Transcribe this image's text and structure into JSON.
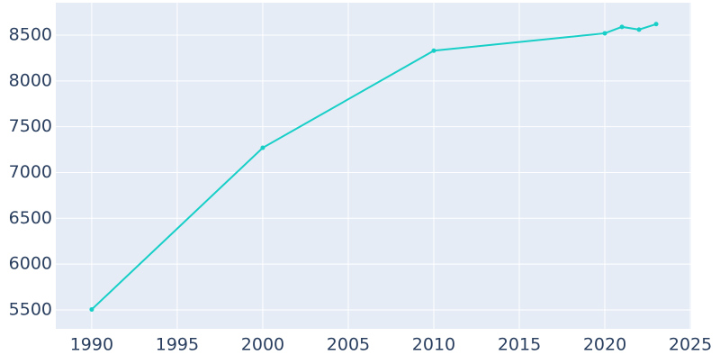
{
  "chart_data": {
    "type": "line",
    "x": [
      1990,
      2000,
      2010,
      2020,
      2021,
      2022,
      2023
    ],
    "series": [
      {
        "color": "#17cfc7",
        "values": [
          5505,
          7270,
          8330,
          8520,
          8590,
          8560,
          8620
        ]
      }
    ],
    "xlim": [
      1987.9,
      2025.05
    ],
    "xticks": [
      1990,
      1995,
      2000,
      2005,
      2010,
      2015,
      2020,
      2025
    ],
    "ylim": [
      5293,
      8854
    ],
    "yticks": [
      5500,
      6000,
      6500,
      7000,
      7500,
      8000,
      8500
    ],
    "grid": true
  }
}
